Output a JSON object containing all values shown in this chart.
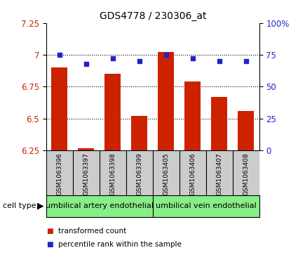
{
  "title": "GDS4778 / 230306_at",
  "samples": [
    "GSM1063396",
    "GSM1063397",
    "GSM1063398",
    "GSM1063399",
    "GSM1063405",
    "GSM1063406",
    "GSM1063407",
    "GSM1063408"
  ],
  "bar_values": [
    6.9,
    6.27,
    6.85,
    6.52,
    7.02,
    6.79,
    6.67,
    6.56
  ],
  "dot_values": [
    75,
    68,
    72,
    70,
    75,
    72,
    70,
    70
  ],
  "ylim_left": [
    6.25,
    7.25
  ],
  "ylim_right": [
    0,
    100
  ],
  "yticks_left": [
    6.25,
    6.5,
    6.75,
    7.0,
    7.25
  ],
  "ytick_labels_left": [
    "6.25",
    "6.5",
    "6.75",
    "7",
    "7.25"
  ],
  "yticks_right": [
    0,
    25,
    50,
    75,
    100
  ],
  "ytick_labels_right": [
    "0",
    "25",
    "50",
    "75",
    "100%"
  ],
  "grid_lines": [
    6.5,
    6.75,
    7.0
  ],
  "group1_label": "umbilical artery endothelial",
  "group2_label": "umbilical vein endothelial",
  "cell_type_label": "cell type",
  "legend1": "transformed count",
  "legend2": "percentile rank within the sample",
  "bar_color": "#cc2200",
  "dot_color": "#2222cc",
  "bar_bottom": 6.25,
  "background_color": "#ffffff",
  "plot_bg_color": "#ffffff",
  "tick_label_color_left": "#cc2200",
  "tick_label_color_right": "#2222cc",
  "sample_label_bg": "#cccccc",
  "group_box_color": "#88ee88"
}
